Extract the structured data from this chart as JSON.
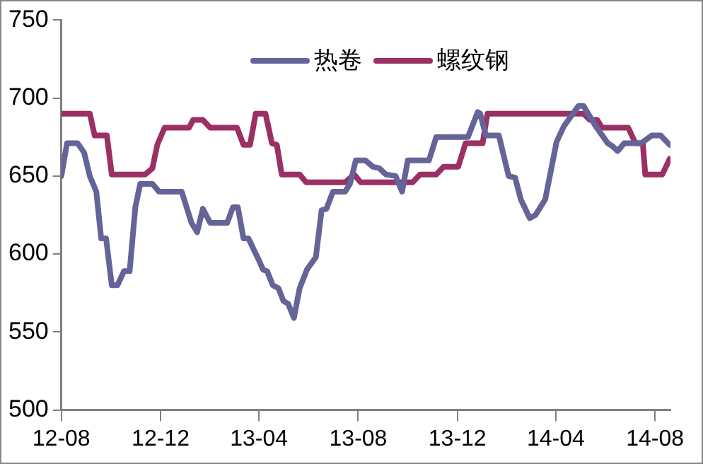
{
  "chart_data": {
    "type": "line",
    "legend": "top",
    "grid": false,
    "marker": "none",
    "line_style": "solid",
    "xlim": [
      "2012-08-01",
      "2014-08-20"
    ],
    "xticks": [
      {
        "value": "2012-08-01",
        "label": "12-08"
      },
      {
        "value": "2012-12-01",
        "label": "12-12"
      },
      {
        "value": "2013-04-01",
        "label": "13-04"
      },
      {
        "value": "2013-08-01",
        "label": "13-08"
      },
      {
        "value": "2013-12-01",
        "label": "13-12"
      },
      {
        "value": "2014-04-01",
        "label": "14-04"
      },
      {
        "value": "2014-08-01",
        "label": "14-08"
      }
    ],
    "ylim": [
      500,
      750
    ],
    "yticks": [
      500,
      550,
      600,
      650,
      700,
      750
    ],
    "series": [
      {
        "name": "热卷",
        "color": "#646499",
        "x": [
          "2012-08-01",
          "2012-08-08",
          "2012-08-21",
          "2012-08-29",
          "2012-09-05",
          "2012-09-13",
          "2012-09-19",
          "2012-09-25",
          "2012-10-02",
          "2012-10-09",
          "2012-10-17",
          "2012-10-24",
          "2012-10-31",
          "2012-11-06",
          "2012-11-21",
          "2012-11-29",
          "2012-12-27",
          "2013-01-08",
          "2013-01-15",
          "2013-01-22",
          "2013-01-31",
          "2013-02-21",
          "2013-02-28",
          "2013-03-06",
          "2013-03-13",
          "2013-03-19",
          "2013-03-31",
          "2013-04-06",
          "2013-04-11",
          "2013-04-18",
          "2013-04-25",
          "2013-05-01",
          "2013-05-07",
          "2013-05-14",
          "2013-05-21",
          "2013-05-30",
          "2013-06-10",
          "2013-06-17",
          "2013-06-23",
          "2013-07-01",
          "2013-07-16",
          "2013-07-22",
          "2013-07-29",
          "2013-08-10",
          "2013-08-19",
          "2013-08-27",
          "2013-09-04",
          "2013-09-16",
          "2013-09-24",
          "2013-10-01",
          "2013-10-27",
          "2013-11-05",
          "2013-12-14",
          "2013-12-26",
          "2013-12-29",
          "2014-01-05",
          "2014-01-21",
          "2014-02-02",
          "2014-02-10",
          "2014-02-17",
          "2014-02-28",
          "2014-03-07",
          "2014-03-19",
          "2014-04-02",
          "2014-04-11",
          "2014-04-29",
          "2014-05-05",
          "2014-05-20",
          "2014-06-04",
          "2014-06-10",
          "2014-06-16",
          "2014-06-24",
          "2014-07-15",
          "2014-07-28",
          "2014-08-08",
          "2014-08-19"
        ],
        "values": [
          650,
          671,
          671,
          665,
          650,
          640,
          610,
          610,
          580,
          580,
          589,
          589,
          630,
          645,
          645,
          640,
          640,
          620,
          614,
          629,
          620,
          620,
          630,
          630,
          610,
          610,
          597,
          590,
          589,
          580,
          578,
          570,
          568,
          559,
          578,
          590,
          598,
          628,
          629,
          640,
          640,
          645,
          660,
          660,
          656,
          655,
          651,
          650,
          640,
          660,
          660,
          675,
          675,
          691,
          690,
          676,
          676,
          650,
          649,
          635,
          623,
          625,
          635,
          672,
          682,
          695,
          695,
          682,
          671,
          669,
          666,
          671,
          671,
          676,
          676,
          670
        ]
      },
      {
        "name": "螺纹钢",
        "color": "#9a3063",
        "x": [
          "2012-08-01",
          "2012-09-05",
          "2012-09-11",
          "2012-09-26",
          "2012-10-02",
          "2012-11-12",
          "2012-11-21",
          "2012-11-27",
          "2012-12-06",
          "2013-01-05",
          "2013-01-10",
          "2013-01-22",
          "2013-01-31",
          "2013-03-05",
          "2013-03-13",
          "2013-03-21",
          "2013-03-28",
          "2013-04-09",
          "2013-04-17",
          "2013-04-23",
          "2013-04-29",
          "2013-05-21",
          "2013-05-29",
          "2013-07-16",
          "2013-07-27",
          "2013-08-04",
          "2013-10-07",
          "2013-10-16",
          "2013-11-05",
          "2013-11-14",
          "2013-12-02",
          "2013-12-11",
          "2014-01-01",
          "2014-01-07",
          "2014-05-05",
          "2014-05-13",
          "2014-05-22",
          "2014-05-28",
          "2014-06-29",
          "2014-07-08",
          "2014-07-17",
          "2014-07-20",
          "2014-08-10",
          "2014-08-19"
        ],
        "values": [
          690,
          690,
          676,
          676,
          651,
          651,
          655,
          670,
          681,
          681,
          686,
          686,
          681,
          681,
          670,
          670,
          690,
          690,
          671,
          670,
          651,
          651,
          646,
          646,
          651,
          646,
          646,
          651,
          651,
          656,
          656,
          671,
          671,
          690,
          690,
          686,
          686,
          681,
          681,
          671,
          671,
          651,
          651,
          661
        ]
      }
    ]
  }
}
